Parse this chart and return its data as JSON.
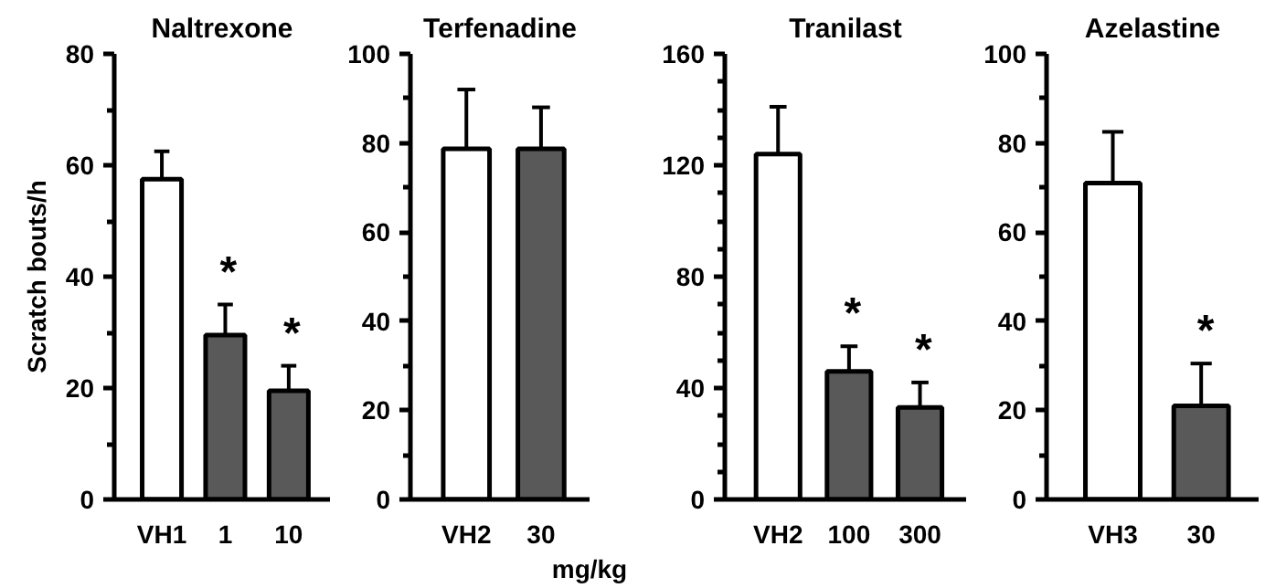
{
  "chart_data": [
    {
      "type": "bar",
      "title": "Naltrexone",
      "ylabel": "Scratch bouts/h",
      "categories": [
        "VH1",
        "1",
        "10"
      ],
      "values": [
        57.5,
        29.5,
        19.5
      ],
      "colors": [
        "#ffffff",
        "#595959",
        "#595959"
      ],
      "errors": [
        [
          57.5,
          62.5
        ],
        [
          29.5,
          35
        ],
        [
          19.5,
          24
        ]
      ],
      "ylim": [
        0,
        80
      ],
      "yticks": [
        0,
        {
          "value": 10,
          "label": null
        },
        20,
        {
          "value": 30,
          "label": null
        },
        40,
        {
          "value": 50,
          "label": null
        },
        60,
        {
          "value": 70,
          "label": null
        },
        80
      ],
      "annotations": [
        {
          "text": "*",
          "x": "1",
          "y": 35
        },
        {
          "text": "*",
          "x": "10",
          "y": 24
        }
      ]
    },
    {
      "type": "bar",
      "title": "Terfenadine",
      "categories": [
        "VH2",
        "30"
      ],
      "values": [
        78.7,
        78.7
      ],
      "colors": [
        "#ffffff",
        "#595959"
      ],
      "errors": [
        [
          78.7,
          92
        ],
        [
          78.7,
          88
        ]
      ],
      "ylim": [
        0,
        100
      ],
      "yticks": [
        0,
        {
          "value": 10,
          "label": null
        },
        20,
        {
          "value": 30,
          "label": null
        },
        40,
        {
          "value": 50,
          "label": null
        },
        60,
        {
          "value": 70,
          "label": null
        },
        80,
        {
          "value": 90,
          "label": null
        },
        100
      ],
      "annotations": [
        "mg/kg"
      ]
    },
    {
      "type": "bar",
      "title": "Tranilast",
      "categories": [
        "VH2",
        "100",
        "300"
      ],
      "values": [
        124,
        46,
        33
      ],
      "colors": [
        "#ffffff",
        "#595959",
        "#595959"
      ],
      "errors": [
        [
          124,
          141
        ],
        [
          46,
          55
        ],
        [
          33,
          42
        ]
      ],
      "ylim": [
        0,
        160
      ],
      "yticks": [
        0,
        {
          "value": 10,
          "label": null
        },
        {
          "value": 20,
          "label": null
        },
        {
          "value": 30,
          "label": null
        },
        40,
        {
          "value": 50,
          "label": null
        },
        {
          "value": 60,
          "label": null
        },
        {
          "value": 70,
          "label": null
        },
        80,
        {
          "value": 90,
          "label": null
        },
        {
          "value": 100,
          "label": null
        },
        {
          "value": 110,
          "label": null
        },
        120,
        {
          "value": 130,
          "label": null
        },
        {
          "value": 140,
          "label": null
        },
        {
          "value": 150,
          "label": null
        },
        160
      ],
      "annotations": [
        {
          "text": "*",
          "x": "100",
          "y": 55
        },
        {
          "text": "*",
          "x": "300",
          "y": 42
        }
      ]
    },
    {
      "type": "bar",
      "title": "Azelastine",
      "categories": [
        "VH3",
        "30"
      ],
      "values": [
        71,
        21
      ],
      "colors": [
        "#ffffff",
        "#595959"
      ],
      "errors": [
        [
          71,
          82.5
        ],
        [
          21,
          30.5
        ]
      ],
      "ylim": [
        0,
        100
      ],
      "yticks": [
        0,
        {
          "value": 10,
          "label": null
        },
        20,
        {
          "value": 30,
          "label": null
        },
        40,
        {
          "value": 50,
          "label": null
        },
        60,
        {
          "value": 70,
          "label": null
        },
        80,
        {
          "value": 90,
          "label": null
        },
        100
      ],
      "annotations": [
        {
          "text": "*",
          "x": "30",
          "y": 30.5
        }
      ]
    }
  ]
}
